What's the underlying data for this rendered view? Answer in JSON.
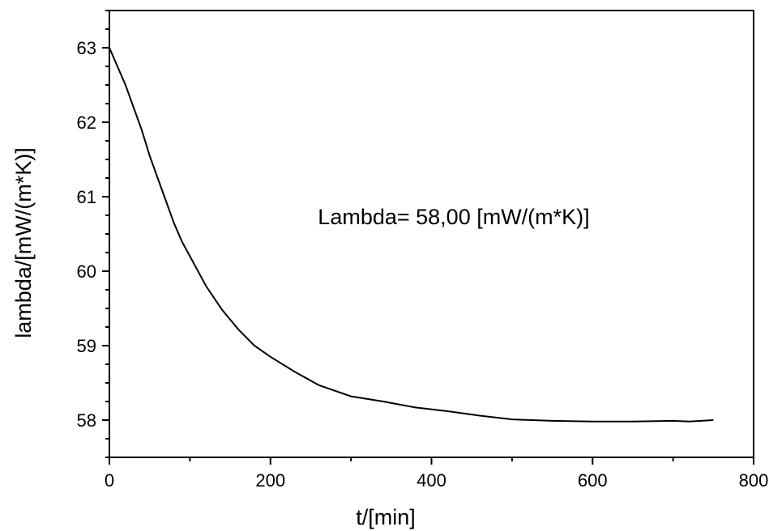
{
  "chart_data": {
    "type": "line",
    "title": "",
    "xlabel": "t/[min]",
    "ylabel": "lambda/[mW/(m*K)]",
    "annotation": "Lambda= 58,00 [mW/(m*K)]",
    "xlim": [
      0,
      800
    ],
    "ylim": [
      57.5,
      63.5
    ],
    "xticks": [
      0,
      200,
      400,
      600,
      800
    ],
    "yticks": [
      58,
      59,
      60,
      61,
      62,
      63
    ],
    "xtick_labels": [
      "0",
      "200",
      "400",
      "600",
      "800"
    ],
    "ytick_labels": [
      "58",
      "59",
      "60",
      "61",
      "62",
      "63"
    ],
    "grid": false,
    "legend": "none",
    "line_color": "#000000",
    "series": [
      {
        "x": [
          0,
          10,
          20,
          30,
          40,
          50,
          60,
          70,
          80,
          90,
          100,
          120,
          140,
          160,
          180,
          200,
          230,
          260,
          300,
          340,
          380,
          420,
          460,
          500,
          550,
          600,
          650,
          700,
          720,
          750
        ],
        "values": [
          63.0,
          62.75,
          62.5,
          62.2,
          61.9,
          61.55,
          61.25,
          60.95,
          60.65,
          60.4,
          60.2,
          59.8,
          59.48,
          59.22,
          59.0,
          58.85,
          58.65,
          58.47,
          58.32,
          58.25,
          58.17,
          58.12,
          58.06,
          58.01,
          57.99,
          57.98,
          57.98,
          57.99,
          57.98,
          58.0
        ]
      }
    ]
  }
}
